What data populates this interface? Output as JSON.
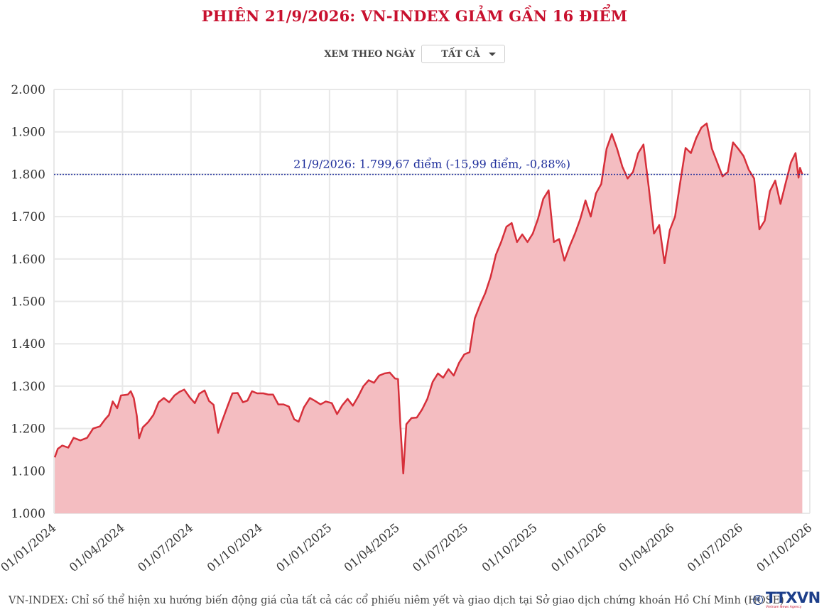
{
  "header": {
    "title": "PHIÊN 21/9/2026: VN-INDEX GIẢM GẦN 16 ĐIỂM"
  },
  "filter": {
    "label": "XEM THEO NGÀY",
    "selected": "TẤT CẢ"
  },
  "footer": {
    "note": "VN-INDEX: Chỉ số thể hiện xu hướng biến động giá của tất cả các cổ phiếu niêm yết và giao dịch tại Sở giao dịch chứng khoán Hồ Chí Minh (HOSE)",
    "logo_text": "TTXVN",
    "logo_subtext": "Vietnam News Agency",
    "copyright_symbol": "©"
  },
  "chart_data": {
    "type": "area",
    "title": "PHIÊN 21/9/2026: VN-INDEX GIẢM GẦN 16 ĐIỂM",
    "xlabel": "",
    "ylabel": "",
    "ylim": [
      1000,
      2000
    ],
    "xlim": [
      "2024-01-01",
      "2026-10-01"
    ],
    "y_ticks": [
      1000,
      1100,
      1200,
      1300,
      1400,
      1500,
      1600,
      1700,
      1800,
      1900,
      2000
    ],
    "y_tick_labels": [
      "1.000",
      "1.100",
      "1.200",
      "1.300",
      "1.400",
      "1.500",
      "1.600",
      "1.700",
      "1.800",
      "1.900",
      "2.000"
    ],
    "x_ticks": [
      "2024-01-01",
      "2024-04-01",
      "2024-07-01",
      "2024-10-01",
      "2025-01-01",
      "2025-04-01",
      "2025-07-01",
      "2025-10-01",
      "2026-01-01",
      "2026-04-01",
      "2026-07-01",
      "2026-10-01"
    ],
    "x_tick_labels": [
      "01/01/2024",
      "01/04/2024",
      "01/07/2024",
      "01/10/2024",
      "01/01/2025",
      "01/04/2025",
      "01/07/2025",
      "01/10/2025",
      "01/01/2026",
      "01/04/2026",
      "01/07/2026",
      "01/10/2026"
    ],
    "grid": true,
    "colors": {
      "line": "#d62f3a",
      "fill": "#f4bdc1",
      "reference": "#1f2f9c",
      "grid": "#e8e8e8"
    },
    "reference_line": {
      "y": 1799.67,
      "label": "21/9/2026: 1.799,67 điểm (-15,99 điểm, -0,88%)"
    },
    "series": [
      {
        "points": [
          [
            "2024-01-02",
            1132
          ],
          [
            "2024-01-06",
            1152
          ],
          [
            "2024-01-12",
            1160
          ],
          [
            "2024-01-20",
            1155
          ],
          [
            "2024-01-27",
            1178
          ],
          [
            "2024-02-05",
            1172
          ],
          [
            "2024-02-14",
            1178
          ],
          [
            "2024-02-22",
            1200
          ],
          [
            "2024-03-02",
            1205
          ],
          [
            "2024-03-09",
            1222
          ],
          [
            "2024-03-14",
            1232
          ],
          [
            "2024-03-19",
            1264
          ],
          [
            "2024-03-25",
            1248
          ],
          [
            "2024-03-30",
            1278
          ],
          [
            "2024-04-08",
            1280
          ],
          [
            "2024-04-12",
            1288
          ],
          [
            "2024-04-16",
            1272
          ],
          [
            "2024-04-20",
            1230
          ],
          [
            "2024-04-23",
            1177
          ],
          [
            "2024-04-28",
            1203
          ],
          [
            "2024-05-05",
            1215
          ],
          [
            "2024-05-12",
            1232
          ],
          [
            "2024-05-19",
            1262
          ],
          [
            "2024-05-26",
            1272
          ],
          [
            "2024-06-02",
            1262
          ],
          [
            "2024-06-09",
            1278
          ],
          [
            "2024-06-16",
            1287
          ],
          [
            "2024-06-22",
            1292
          ],
          [
            "2024-06-30",
            1272
          ],
          [
            "2024-07-06",
            1260
          ],
          [
            "2024-07-12",
            1282
          ],
          [
            "2024-07-19",
            1290
          ],
          [
            "2024-07-25",
            1265
          ],
          [
            "2024-07-31",
            1256
          ],
          [
            "2024-08-06",
            1190
          ],
          [
            "2024-08-11",
            1216
          ],
          [
            "2024-08-18",
            1250
          ],
          [
            "2024-08-25",
            1283
          ],
          [
            "2024-09-01",
            1284
          ],
          [
            "2024-09-08",
            1262
          ],
          [
            "2024-09-14",
            1266
          ],
          [
            "2024-09-20",
            1288
          ],
          [
            "2024-09-27",
            1283
          ],
          [
            "2024-10-05",
            1283
          ],
          [
            "2024-10-12",
            1280
          ],
          [
            "2024-10-18",
            1280
          ],
          [
            "2024-10-25",
            1257
          ],
          [
            "2024-11-01",
            1257
          ],
          [
            "2024-11-08",
            1252
          ],
          [
            "2024-11-15",
            1222
          ],
          [
            "2024-11-21",
            1216
          ],
          [
            "2024-11-28",
            1250
          ],
          [
            "2024-12-06",
            1272
          ],
          [
            "2024-12-13",
            1265
          ],
          [
            "2024-12-20",
            1257
          ],
          [
            "2024-12-27",
            1264
          ],
          [
            "2025-01-04",
            1260
          ],
          [
            "2025-01-11",
            1234
          ],
          [
            "2025-01-18",
            1255
          ],
          [
            "2025-01-25",
            1270
          ],
          [
            "2025-02-01",
            1254
          ],
          [
            "2025-02-08",
            1275
          ],
          [
            "2025-02-15",
            1300
          ],
          [
            "2025-02-22",
            1314
          ],
          [
            "2025-03-01",
            1308
          ],
          [
            "2025-03-08",
            1325
          ],
          [
            "2025-03-15",
            1330
          ],
          [
            "2025-03-22",
            1332
          ],
          [
            "2025-03-29",
            1318
          ],
          [
            "2025-04-02",
            1317
          ],
          [
            "2025-04-05",
            1210
          ],
          [
            "2025-04-09",
            1094
          ],
          [
            "2025-04-13",
            1210
          ],
          [
            "2025-04-20",
            1225
          ],
          [
            "2025-04-27",
            1226
          ],
          [
            "2025-05-04",
            1245
          ],
          [
            "2025-05-11",
            1270
          ],
          [
            "2025-05-18",
            1310
          ],
          [
            "2025-05-25",
            1330
          ],
          [
            "2025-06-01",
            1320
          ],
          [
            "2025-06-08",
            1340
          ],
          [
            "2025-06-15",
            1325
          ],
          [
            "2025-06-22",
            1355
          ],
          [
            "2025-06-29",
            1375
          ],
          [
            "2025-07-06",
            1380
          ],
          [
            "2025-07-13",
            1460
          ],
          [
            "2025-07-20",
            1492
          ],
          [
            "2025-07-27",
            1520
          ],
          [
            "2025-08-03",
            1558
          ],
          [
            "2025-08-10",
            1610
          ],
          [
            "2025-08-17",
            1640
          ],
          [
            "2025-08-24",
            1676
          ],
          [
            "2025-08-31",
            1685
          ],
          [
            "2025-09-07",
            1640
          ],
          [
            "2025-09-14",
            1658
          ],
          [
            "2025-09-21",
            1640
          ],
          [
            "2025-09-28",
            1660
          ],
          [
            "2025-10-05",
            1695
          ],
          [
            "2025-10-12",
            1742
          ],
          [
            "2025-10-19",
            1762
          ],
          [
            "2025-10-26",
            1640
          ],
          [
            "2025-11-02",
            1647
          ],
          [
            "2025-11-09",
            1596
          ],
          [
            "2025-11-16",
            1630
          ],
          [
            "2025-11-23",
            1660
          ],
          [
            "2025-11-30",
            1694
          ],
          [
            "2025-12-07",
            1738
          ],
          [
            "2025-12-14",
            1700
          ],
          [
            "2025-12-21",
            1755
          ],
          [
            "2025-12-28",
            1777
          ],
          [
            "2026-01-04",
            1860
          ],
          [
            "2026-01-11",
            1895
          ],
          [
            "2026-01-18",
            1860
          ],
          [
            "2026-01-25",
            1818
          ],
          [
            "2026-02-01",
            1790
          ],
          [
            "2026-02-08",
            1805
          ],
          [
            "2026-02-15",
            1850
          ],
          [
            "2026-02-22",
            1870
          ],
          [
            "2026-03-01",
            1770
          ],
          [
            "2026-03-08",
            1660
          ],
          [
            "2026-03-15",
            1680
          ],
          [
            "2026-03-22",
            1590
          ],
          [
            "2026-03-29",
            1668
          ],
          [
            "2026-04-05",
            1700
          ],
          [
            "2026-04-12",
            1782
          ],
          [
            "2026-04-19",
            1862
          ],
          [
            "2026-04-26",
            1850
          ],
          [
            "2026-05-03",
            1885
          ],
          [
            "2026-05-10",
            1910
          ],
          [
            "2026-05-17",
            1920
          ],
          [
            "2026-05-24",
            1860
          ],
          [
            "2026-05-31",
            1828
          ],
          [
            "2026-06-07",
            1795
          ],
          [
            "2026-06-14",
            1805
          ],
          [
            "2026-06-21",
            1875
          ],
          [
            "2026-06-28",
            1860
          ],
          [
            "2026-07-05",
            1843
          ],
          [
            "2026-07-12",
            1810
          ],
          [
            "2026-07-19",
            1790
          ],
          [
            "2026-07-26",
            1670
          ],
          [
            "2026-08-02",
            1690
          ],
          [
            "2026-08-09",
            1760
          ],
          [
            "2026-08-16",
            1785
          ],
          [
            "2026-08-23",
            1730
          ],
          [
            "2026-08-30",
            1780
          ],
          [
            "2026-09-06",
            1828
          ],
          [
            "2026-09-12",
            1850
          ],
          [
            "2026-09-16",
            1792
          ],
          [
            "2026-09-18",
            1815
          ],
          [
            "2026-09-21",
            1799.67
          ]
        ]
      }
    ]
  }
}
